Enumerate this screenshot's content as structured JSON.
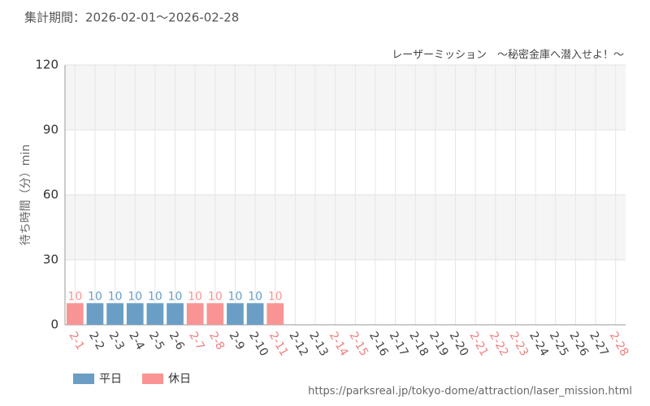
{
  "chart_data": {
    "type": "bar",
    "title": "集計期間：2026-02-01〜2026-02-28",
    "subtitle": "レーザーミッション　〜秘密金庫へ潜入せよ！〜",
    "y_label": "待ち時間（分）min",
    "source": "https://parksreal.jp/tokyo-dome/attraction/laser_mission.html",
    "categories": [
      "2-1",
      "2-2",
      "2-3",
      "2-4",
      "2-5",
      "2-6",
      "2-7",
      "2-8",
      "2-9",
      "2-10",
      "2-11",
      "2-12",
      "2-13",
      "2-14",
      "2-15",
      "2-16",
      "2-17",
      "2-18",
      "2-19",
      "2-20",
      "2-21",
      "2-22",
      "2-23",
      "2-24",
      "2-25",
      "2-26",
      "2-27",
      "2-28"
    ],
    "category_colors": [
      "#f08080",
      "#444444",
      "#444444",
      "#444444",
      "#444444",
      "#444444",
      "#f08080",
      "#f08080",
      "#444444",
      "#444444",
      "#f08080",
      "#444444",
      "#444444",
      "#f08080",
      "#f08080",
      "#444444",
      "#444444",
      "#444444",
      "#444444",
      "#444444",
      "#f08080",
      "#f08080",
      "#f08080",
      "#444444",
      "#444444",
      "#444444",
      "#444444",
      "#f08080"
    ],
    "series": [
      {
        "name": "平日",
        "color": "#6a9ec5",
        "values": [
          null,
          10,
          10,
          10,
          10,
          10,
          null,
          null,
          10,
          10,
          null,
          null,
          null,
          null,
          null,
          null,
          null,
          null,
          null,
          null,
          null,
          null,
          null,
          null,
          null,
          null,
          null,
          null
        ]
      },
      {
        "name": "休日",
        "color": "#f99494",
        "values": [
          10,
          null,
          null,
          null,
          null,
          null,
          10,
          10,
          null,
          null,
          10,
          null,
          null,
          null,
          null,
          null,
          null,
          null,
          null,
          null,
          null,
          null,
          null,
          null,
          null,
          null,
          null,
          null
        ]
      }
    ],
    "ylim": [
      0,
      120
    ],
    "yticks": [
      0,
      30,
      60,
      90,
      120
    ],
    "grid": true,
    "legend": "bottom-left"
  }
}
